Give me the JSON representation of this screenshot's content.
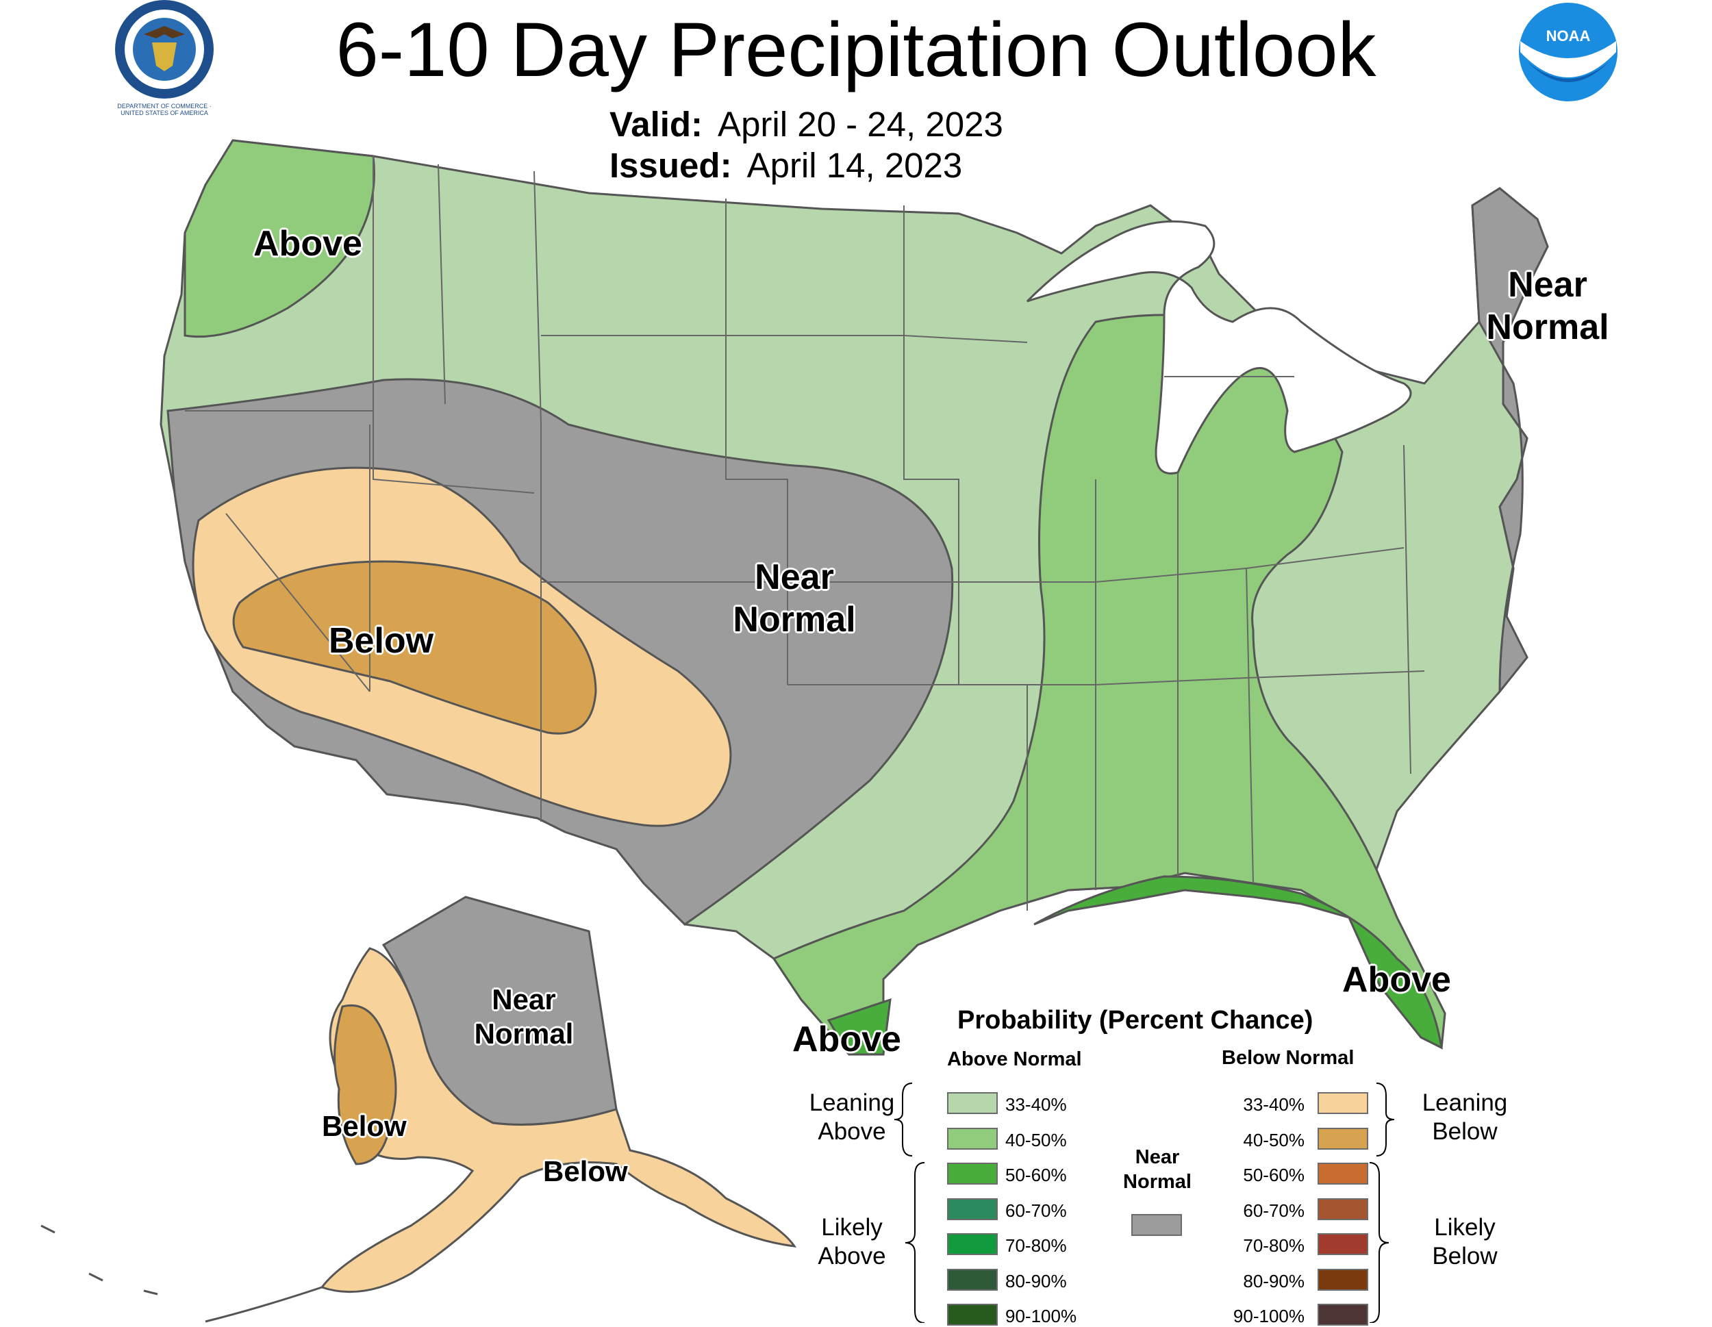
{
  "header": {
    "title": "6-10 Day Precipitation Outlook",
    "valid_label": "Valid:",
    "valid_value": "April 20 - 24, 2023",
    "issued_label": "Issued:",
    "issued_value": "April 14, 2023"
  },
  "logos": {
    "left": {
      "icon": "department-of-commerce-seal-icon",
      "text": "DEPARTMENT OF COMMERCE · UNITED STATES OF AMERICA"
    },
    "right": {
      "icon": "noaa-logo-icon",
      "text": "NOAA"
    }
  },
  "map_labels": {
    "pacific_nw": "Above",
    "west": "Below",
    "plains_line1": "Near",
    "plains_line2": "Normal",
    "northeast_line1": "Near",
    "northeast_line2": "Normal",
    "florida": "Above",
    "south_texas": "Above",
    "alaska_line1": "Near",
    "alaska_line2": "Normal",
    "alaska_west": "Below",
    "alaska_south": "Below"
  },
  "legend": {
    "title": "Probability (Percent Chance)",
    "above_heading": "Above Normal",
    "below_heading": "Below Normal",
    "near_heading_line1": "Near",
    "near_heading_line2": "Normal",
    "leaning_above_line1": "Leaning",
    "leaning_above_line2": "Above",
    "likely_above_line1": "Likely",
    "likely_above_line2": "Above",
    "leaning_below_line1": "Leaning",
    "leaning_below_line2": "Below",
    "likely_below_line1": "Likely",
    "likely_below_line2": "Below",
    "above": [
      {
        "label": "33-40%",
        "color": "#b5d7ab"
      },
      {
        "label": "40-50%",
        "color": "#91cc7c"
      },
      {
        "label": "50-60%",
        "color": "#49ad3c"
      },
      {
        "label": "60-70%",
        "color": "#2b8a5e"
      },
      {
        "label": "70-80%",
        "color": "#129b3c"
      },
      {
        "label": "80-90%",
        "color": "#2f5a3a"
      },
      {
        "label": "90-100%",
        "color": "#285a1d"
      }
    ],
    "below": [
      {
        "label": "33-40%",
        "color": "#f7d29b"
      },
      {
        "label": "40-50%",
        "color": "#d8a350"
      },
      {
        "label": "50-60%",
        "color": "#c86c30"
      },
      {
        "label": "60-70%",
        "color": "#a4552f"
      },
      {
        "label": "70-80%",
        "color": "#a13b2d"
      },
      {
        "label": "80-90%",
        "color": "#7b3a0e"
      },
      {
        "label": "90-100%",
        "color": "#4d3536"
      }
    ],
    "near_color": "#9c9c9c"
  }
}
